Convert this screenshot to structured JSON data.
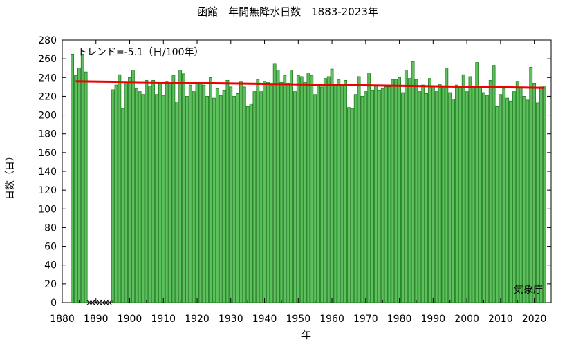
{
  "chart_data": {
    "type": "bar",
    "title": "函館　年間無降水日数　1883-2023年",
    "xlabel": "年",
    "ylabel": "日数（日）",
    "xlim": [
      1880,
      2025
    ],
    "ylim": [
      0,
      280
    ],
    "x_ticks": [
      "1880",
      "1890",
      "1900",
      "1910",
      "1920",
      "1930",
      "1940",
      "1950",
      "1960",
      "1970",
      "1980",
      "1990",
      "2000",
      "2010",
      "2020"
    ],
    "y_ticks": [
      "0",
      "20",
      "40",
      "60",
      "80",
      "100",
      "120",
      "140",
      "160",
      "180",
      "200",
      "220",
      "240",
      "260",
      "280"
    ],
    "bar_color": "#5cc05c",
    "bar_edge_color": "#1f7a1f",
    "trend_color": "#ee0000",
    "trend_label": "トレンド=-5.1（日/100年）",
    "trend": {
      "x_start": 1884,
      "y_start": 236,
      "x_end": 2023,
      "y_end": 229
    },
    "source_label": "気象庁",
    "missing_marker": "×",
    "missing_years": [
      1888,
      1889,
      1890,
      1891,
      1892,
      1893,
      1894
    ],
    "series": [
      {
        "years": [
          1883,
          1884,
          1885,
          1886,
          1887,
          1895,
          1896,
          1897,
          1898,
          1899,
          1900,
          1901,
          1902,
          1903,
          1904,
          1905,
          1906,
          1907,
          1908,
          1909,
          1910,
          1911,
          1912,
          1913,
          1914,
          1915,
          1916,
          1917,
          1918,
          1919,
          1920,
          1921,
          1922,
          1923,
          1924,
          1925,
          1926,
          1927,
          1928,
          1929,
          1930,
          1931,
          1932,
          1933,
          1934,
          1935,
          1936,
          1937,
          1938,
          1939,
          1940,
          1941,
          1942,
          1943,
          1944,
          1945,
          1946,
          1947,
          1948,
          1949,
          1950,
          1951,
          1952,
          1953,
          1954,
          1955,
          1956,
          1957,
          1958,
          1959,
          1960,
          1961,
          1962,
          1963,
          1964,
          1965,
          1966,
          1967,
          1968,
          1969,
          1970,
          1971,
          1972,
          1973,
          1974,
          1975,
          1976,
          1977,
          1978,
          1979,
          1980,
          1981,
          1982,
          1983,
          1984,
          1985,
          1986,
          1987,
          1988,
          1989,
          1990,
          1991,
          1992,
          1993,
          1994,
          1995,
          1996,
          1997,
          1998,
          1999,
          2000,
          2001,
          2002,
          2003,
          2004,
          2005,
          2006,
          2007,
          2008,
          2009,
          2010,
          2011,
          2012,
          2013,
          2014,
          2015,
          2016,
          2017,
          2018,
          2019,
          2020,
          2021,
          2022,
          2023
        ],
        "values": [
          265,
          242,
          250,
          265,
          246,
          227,
          232,
          243,
          207,
          235,
          240,
          248,
          228,
          225,
          222,
          237,
          231,
          237,
          222,
          235,
          221,
          236,
          235,
          242,
          214,
          248,
          244,
          220,
          232,
          225,
          235,
          235,
          232,
          220,
          240,
          218,
          228,
          221,
          226,
          237,
          230,
          220,
          223,
          236,
          230,
          209,
          212,
          225,
          238,
          225,
          236,
          235,
          232,
          255,
          248,
          235,
          242,
          234,
          248,
          225,
          242,
          241,
          235,
          245,
          242,
          222,
          232,
          230,
          239,
          241,
          249,
          232,
          238,
          231,
          237,
          208,
          207,
          222,
          241,
          220,
          225,
          245,
          226,
          231,
          226,
          228,
          230,
          230,
          238,
          238,
          240,
          224,
          248,
          239,
          257,
          238,
          225,
          232,
          223,
          239,
          231,
          225,
          233,
          231,
          250,
          224,
          217,
          232,
          231,
          243,
          225,
          241,
          229,
          256,
          229,
          224,
          221,
          237,
          253,
          209,
          222,
          228,
          218,
          215,
          225,
          236,
          230,
          220,
          216,
          251,
          234,
          213,
          230,
          231
        ]
      }
    ]
  }
}
